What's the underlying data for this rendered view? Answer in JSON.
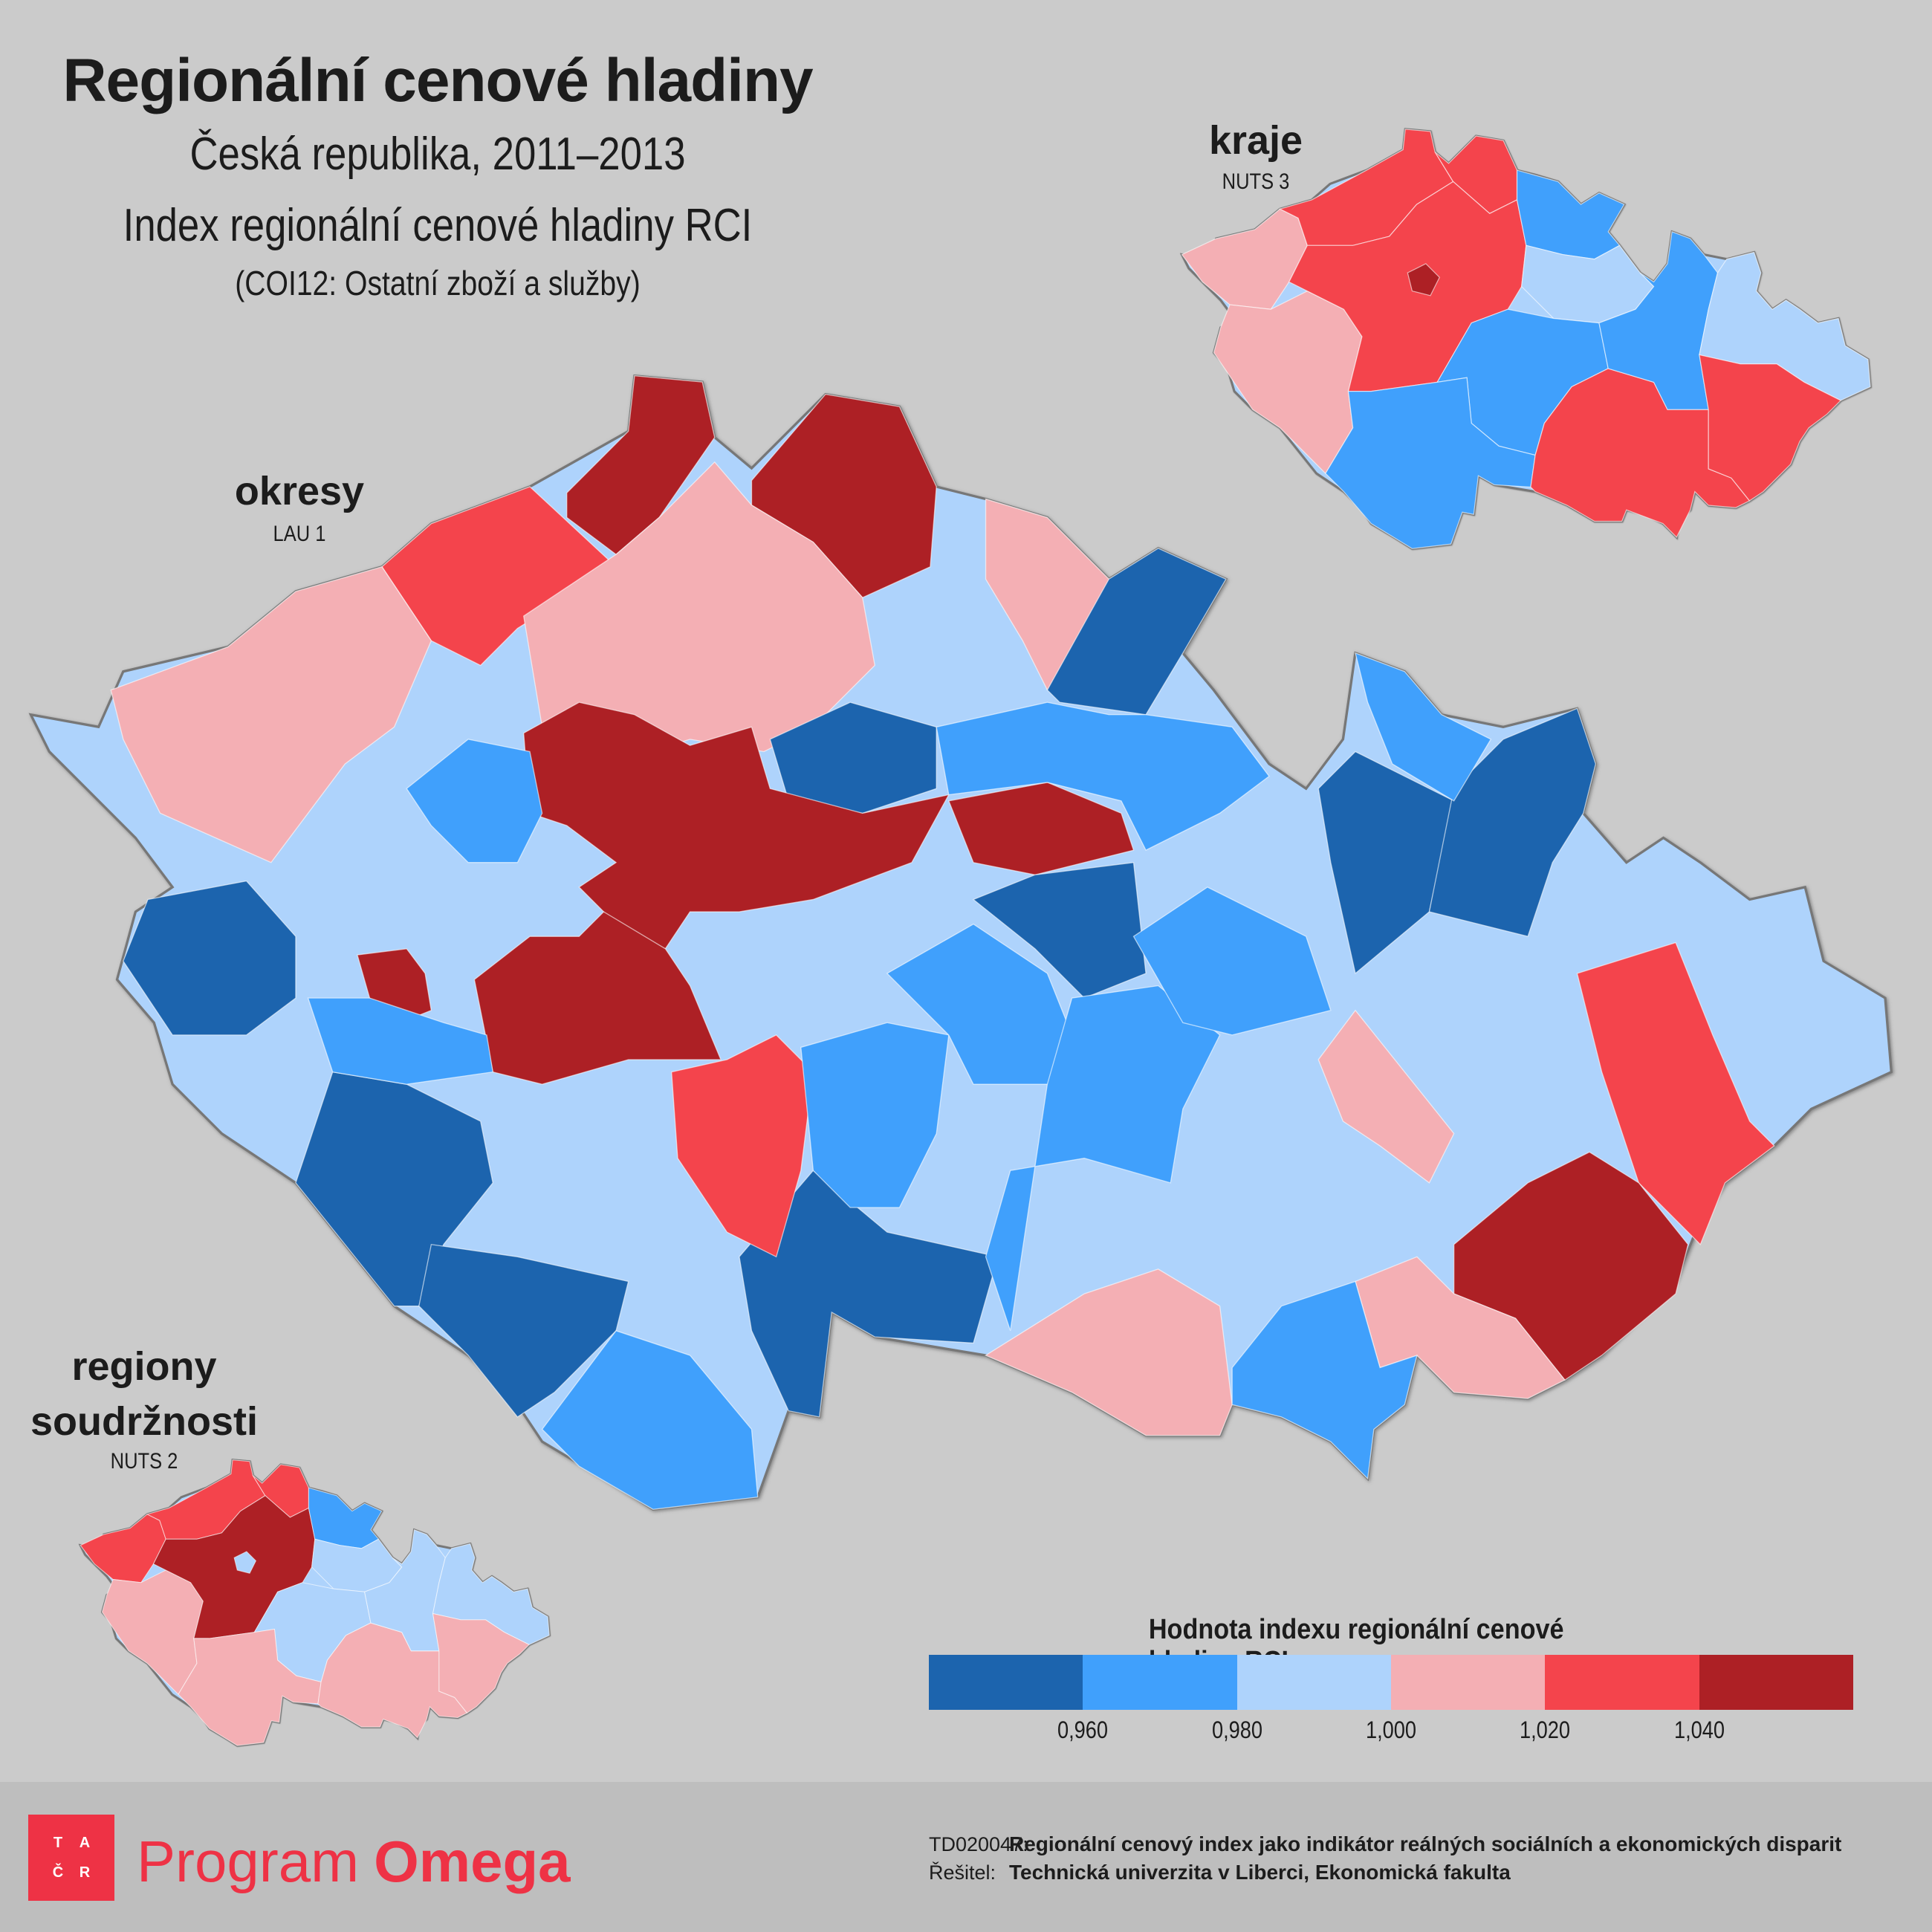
{
  "header": {
    "title": "Regionální cenové hladiny",
    "subtitle": "Česká republika, 2011–2013",
    "index_name": "Index regionální cenové hladiny RCI",
    "category": "(COI12: Ostatní zboží a služby)"
  },
  "maps": {
    "okresy": {
      "label": "okresy",
      "code": "LAU 1"
    },
    "kraje": {
      "label": "kraje",
      "code": "NUTS 3"
    },
    "regiony": {
      "label_line1": "regiony",
      "label_line2": "soudržnosti",
      "code": "NUTS 2"
    }
  },
  "legend": {
    "title": "Hodnota indexu regionální cenové hladiny RCI",
    "colors": [
      "#1c64ae",
      "#40a0fc",
      "#aed3fc",
      "#f4afb4",
      "#f4444c",
      "#ad2025"
    ],
    "ticks": [
      "0,960",
      "0,980",
      "1,000",
      "1,020",
      "1,040"
    ]
  },
  "region_classes": {
    "kraje": [
      3,
      3,
      4,
      4,
      4,
      5,
      1,
      2,
      1,
      1,
      4,
      1,
      2,
      4
    ],
    "regiony": [
      4,
      3,
      4,
      4,
      5,
      2,
      1,
      2,
      2,
      3,
      3,
      2,
      2,
      3
    ],
    "okresy": [
      5,
      5,
      4,
      3,
      3,
      3,
      0,
      0,
      5,
      5,
      5,
      5,
      0,
      0,
      0,
      1,
      0,
      4,
      1,
      1,
      0,
      1,
      1,
      0,
      0,
      1,
      4,
      5,
      3,
      3,
      1,
      3,
      1,
      1,
      1
    ]
  },
  "footer": {
    "logo_letters": [
      "T",
      "A",
      "Č",
      "R"
    ],
    "program": "Program",
    "program_name": "Omega",
    "project_key": "TD020047:",
    "project_title": "Regionální cenový index jako indikátor reálných sociálních a ekonomických disparit",
    "solver_key": "Řešitel:",
    "solver": "Technická univerzita v Liberci, Ekonomická fakulta"
  }
}
